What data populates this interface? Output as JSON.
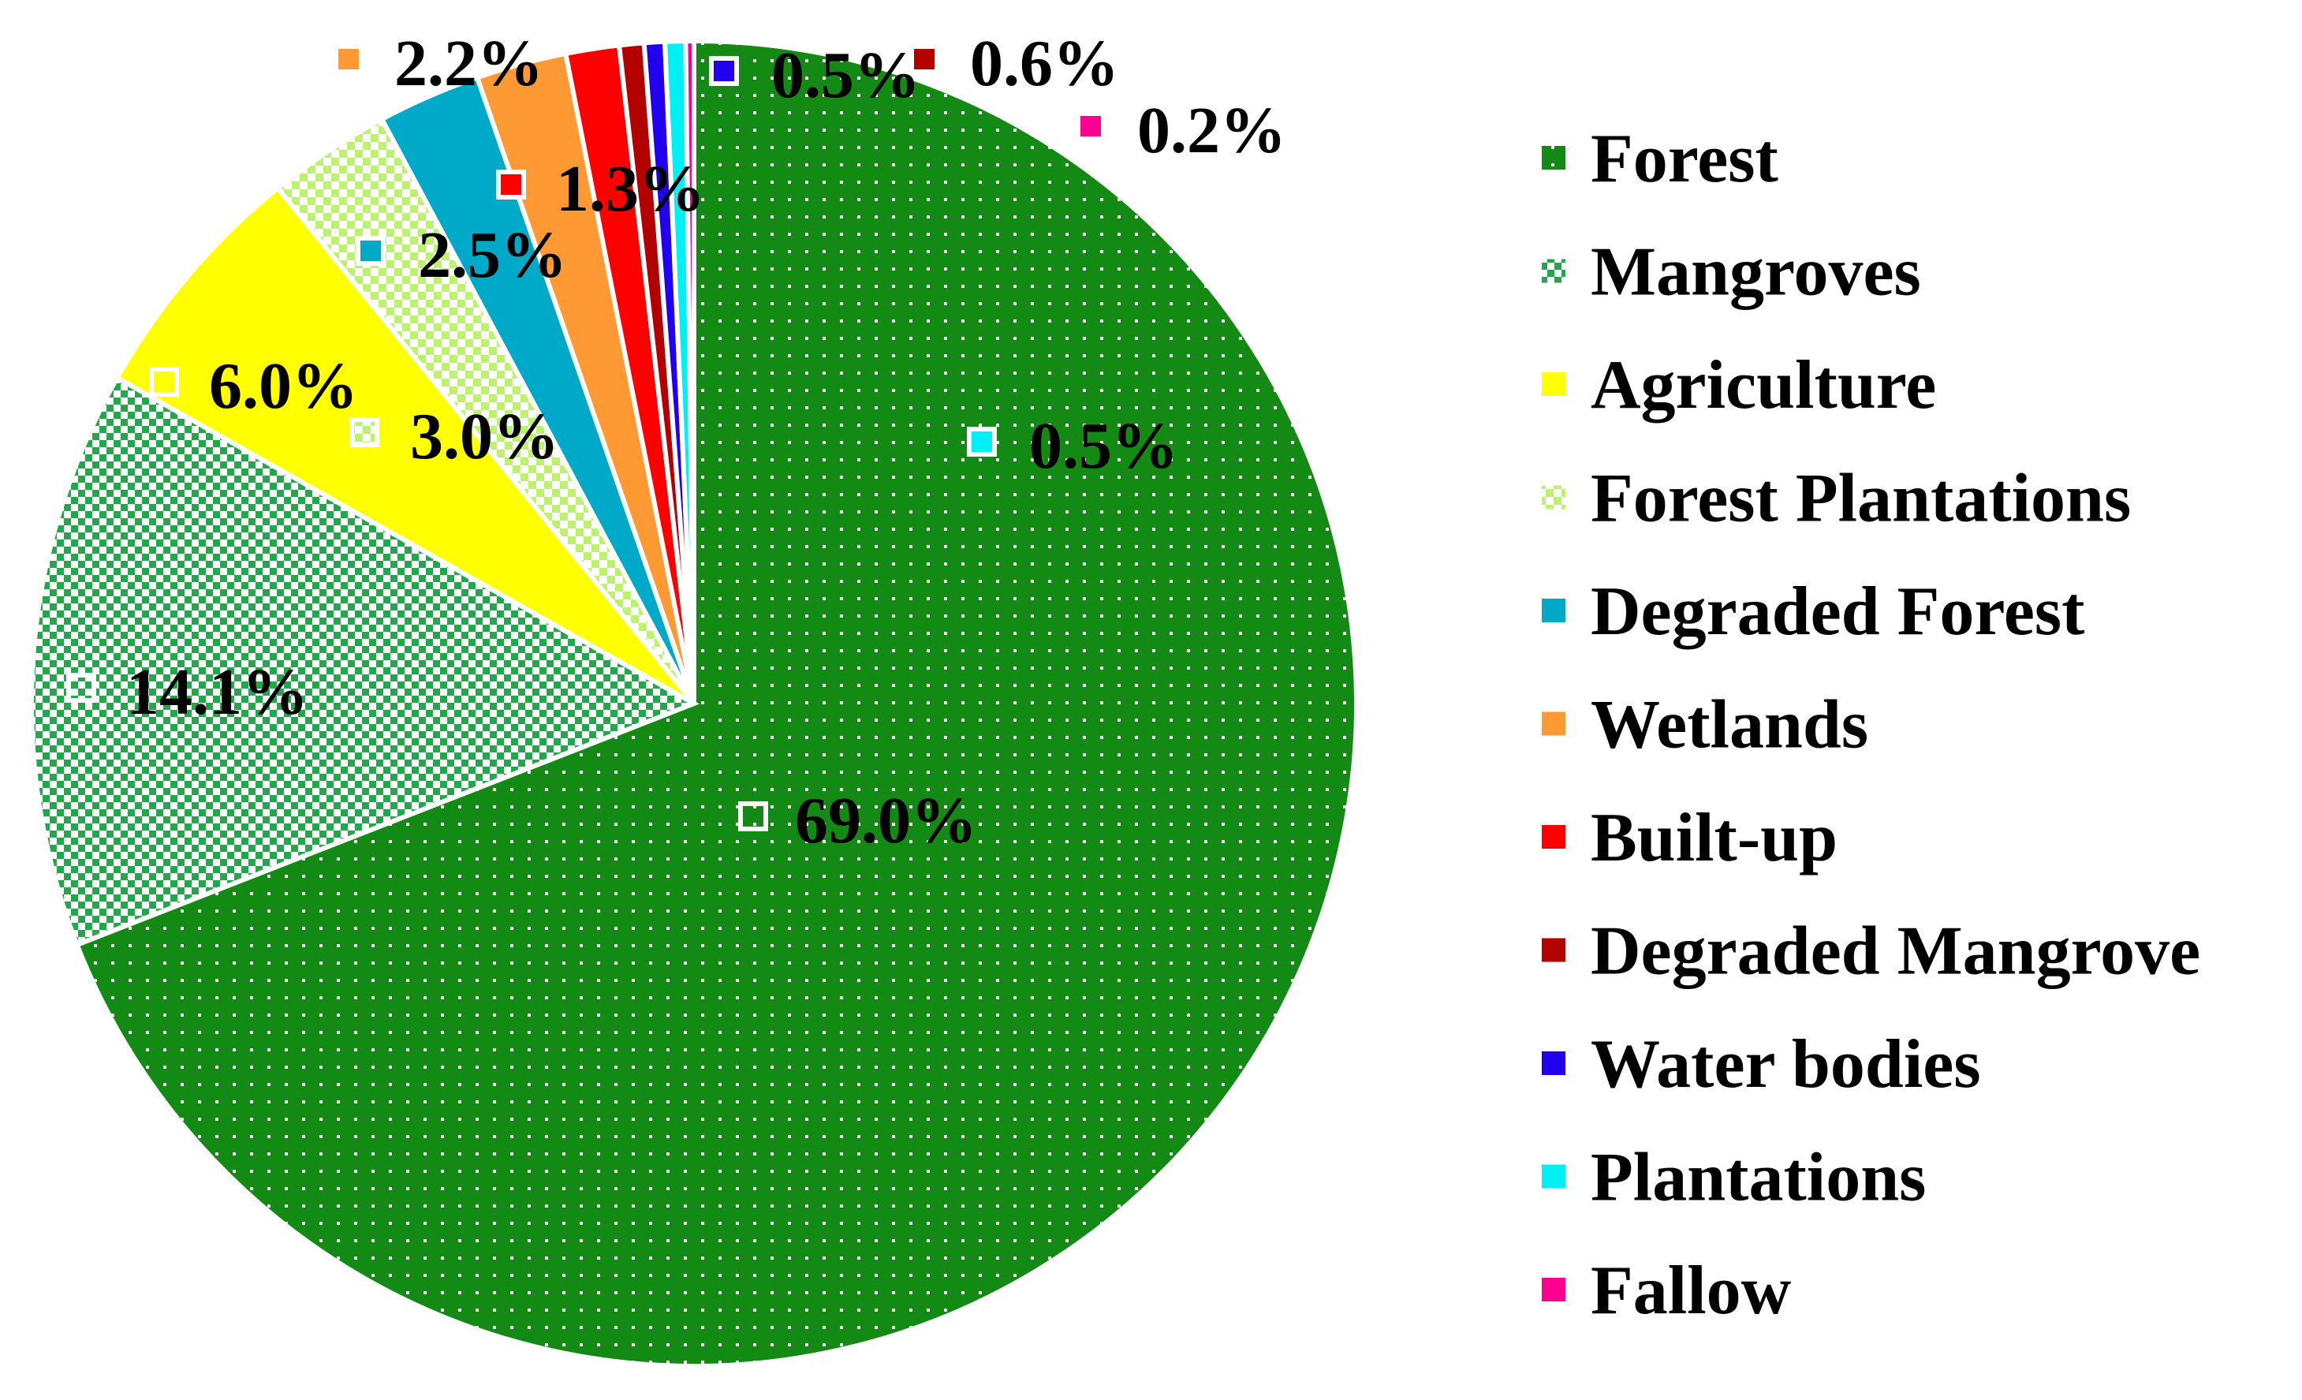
{
  "chart_data": {
    "type": "pie",
    "title": "",
    "legend_position": "right",
    "series": [
      {
        "name": "Forest",
        "value": 69.0,
        "label": "69.0%",
        "color": "#138A13",
        "pattern": "dots"
      },
      {
        "name": "Mangroves",
        "value": 14.1,
        "label": "14.1%",
        "color": "#22A84A",
        "pattern": "checker"
      },
      {
        "name": "Agriculture",
        "value": 6.0,
        "label": "6.0%",
        "color": "#FFFF00",
        "pattern": "solid"
      },
      {
        "name": "Forest Plantations",
        "value": 3.0,
        "label": "3.0%",
        "color": "#BDF26F",
        "pattern": "checker-light"
      },
      {
        "name": "Degraded Forest",
        "value": 2.5,
        "label": "2.5%",
        "color": "#00A9C8",
        "pattern": "solid"
      },
      {
        "name": "Wetlands",
        "value": 2.2,
        "label": "2.2%",
        "color": "#FF9933",
        "pattern": "solid"
      },
      {
        "name": "Built-up",
        "value": 1.3,
        "label": "1.3%",
        "color": "#FF0000",
        "pattern": "solid"
      },
      {
        "name": "Degraded Mangrove",
        "value": 0.6,
        "label": "0.6%",
        "color": "#B30000",
        "pattern": "solid"
      },
      {
        "name": "Water bodies",
        "value": 0.5,
        "label": "0.5%",
        "color": "#2200EE",
        "pattern": "solid"
      },
      {
        "name": "Plantations",
        "value": 0.5,
        "label": "0.5%",
        "color": "#00F0F5",
        "pattern": "solid"
      },
      {
        "name": "Fallow",
        "value": 0.2,
        "label": "0.2%",
        "color": "#FF0090",
        "pattern": "solid"
      }
    ]
  }
}
